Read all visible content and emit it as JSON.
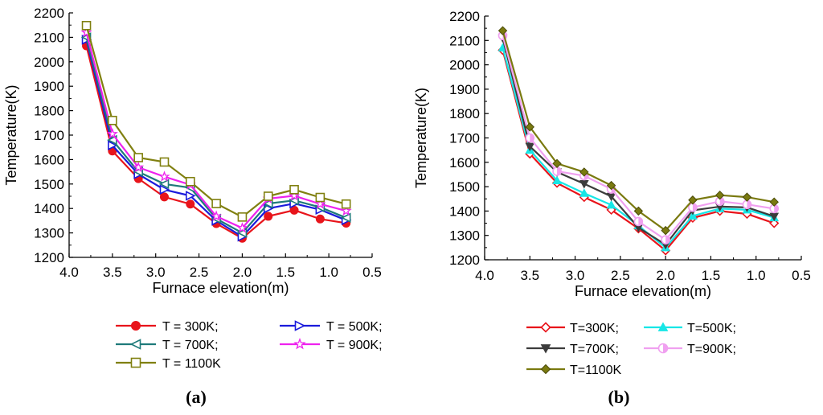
{
  "chart_data": [
    {
      "type": "line",
      "panel": "a",
      "panel_label": "(a)",
      "xlabel": "Furnace elevation(m)",
      "ylabel": "Temperature(K)",
      "xlim": [
        4.0,
        0.5
      ],
      "ylim": [
        1200,
        2200
      ],
      "x_ticks": [
        "4.0",
        "3.5",
        "3.0",
        "2.5",
        "2.0",
        "1.5",
        "1.0",
        "0.5"
      ],
      "y_ticks": [
        "1200",
        "1300",
        "1400",
        "1500",
        "1600",
        "1700",
        "1800",
        "1900",
        "2000",
        "2100",
        "2200"
      ],
      "x": [
        3.8,
        3.5,
        3.2,
        2.9,
        2.6,
        2.3,
        2.0,
        1.7,
        1.4,
        1.1,
        0.8
      ],
      "legend_position": "bottom",
      "series": [
        {
          "name": "T = 300K;",
          "color": "#e8141b",
          "marker": "circle-filled",
          "values": [
            2065,
            1635,
            1522,
            1447,
            1418,
            1338,
            1278,
            1368,
            1393,
            1357,
            1340
          ]
        },
        {
          "name": "T = 500K;",
          "color": "#1a1adc",
          "marker": "triangle-right-open",
          "values": [
            2090,
            1658,
            1540,
            1477,
            1452,
            1350,
            1285,
            1400,
            1420,
            1395,
            1352
          ]
        },
        {
          "name": "T = 700K;",
          "color": "#1e7a7a",
          "marker": "triangle-left-open",
          "values": [
            2100,
            1680,
            1550,
            1500,
            1485,
            1358,
            1300,
            1420,
            1433,
            1405,
            1362
          ]
        },
        {
          "name": "T = 900K;",
          "color": "#ee22ee",
          "marker": "star",
          "values": [
            2120,
            1705,
            1568,
            1530,
            1497,
            1368,
            1320,
            1440,
            1452,
            1418,
            1390
          ]
        },
        {
          "name": "T = 1100K",
          "color": "#808010",
          "marker": "square-open",
          "values": [
            2148,
            1760,
            1608,
            1590,
            1510,
            1420,
            1365,
            1450,
            1477,
            1445,
            1418
          ]
        }
      ]
    },
    {
      "type": "line",
      "panel": "b",
      "panel_label": "(b)",
      "xlabel": "Furnace elevation(m)",
      "ylabel": "Temperature(K)",
      "xlim": [
        4.0,
        0.5
      ],
      "ylim": [
        1200,
        2200
      ],
      "x_ticks": [
        "4.0",
        "3.5",
        "3.0",
        "2.5",
        "2.0",
        "1.5",
        "1.0",
        "0.5"
      ],
      "y_ticks": [
        "1200",
        "1300",
        "1400",
        "1500",
        "1600",
        "1700",
        "1800",
        "1900",
        "2000",
        "2100",
        "2200"
      ],
      "x": [
        3.8,
        3.5,
        3.2,
        2.9,
        2.6,
        2.3,
        2.0,
        1.7,
        1.4,
        1.1,
        0.8
      ],
      "legend_position": "bottom",
      "series": [
        {
          "name": "T=300K;",
          "color": "#e8141b",
          "marker": "diamond-open",
          "values": [
            2060,
            1635,
            1515,
            1457,
            1405,
            1328,
            1238,
            1372,
            1400,
            1388,
            1350
          ]
        },
        {
          "name": "T=500K;",
          "color": "#17e6e6",
          "marker": "triangle-up-filled",
          "values": [
            2070,
            1650,
            1525,
            1473,
            1425,
            1340,
            1250,
            1380,
            1410,
            1405,
            1373
          ]
        },
        {
          "name": "T=700K;",
          "color": "#3c3c3c",
          "marker": "triangle-down-filled",
          "values": [
            2110,
            1665,
            1560,
            1512,
            1460,
            1332,
            1262,
            1403,
            1418,
            1415,
            1378
          ]
        },
        {
          "name": "T=900K;",
          "color": "#f0a0f0",
          "marker": "circle-half",
          "values": [
            2120,
            1700,
            1563,
            1545,
            1490,
            1357,
            1282,
            1415,
            1440,
            1427,
            1410
          ]
        },
        {
          "name": "T=1100K",
          "color": "#7a7a10",
          "marker": "diamond-filled",
          "values": [
            2140,
            1745,
            1595,
            1560,
            1505,
            1400,
            1320,
            1445,
            1465,
            1457,
            1437
          ]
        }
      ]
    }
  ]
}
